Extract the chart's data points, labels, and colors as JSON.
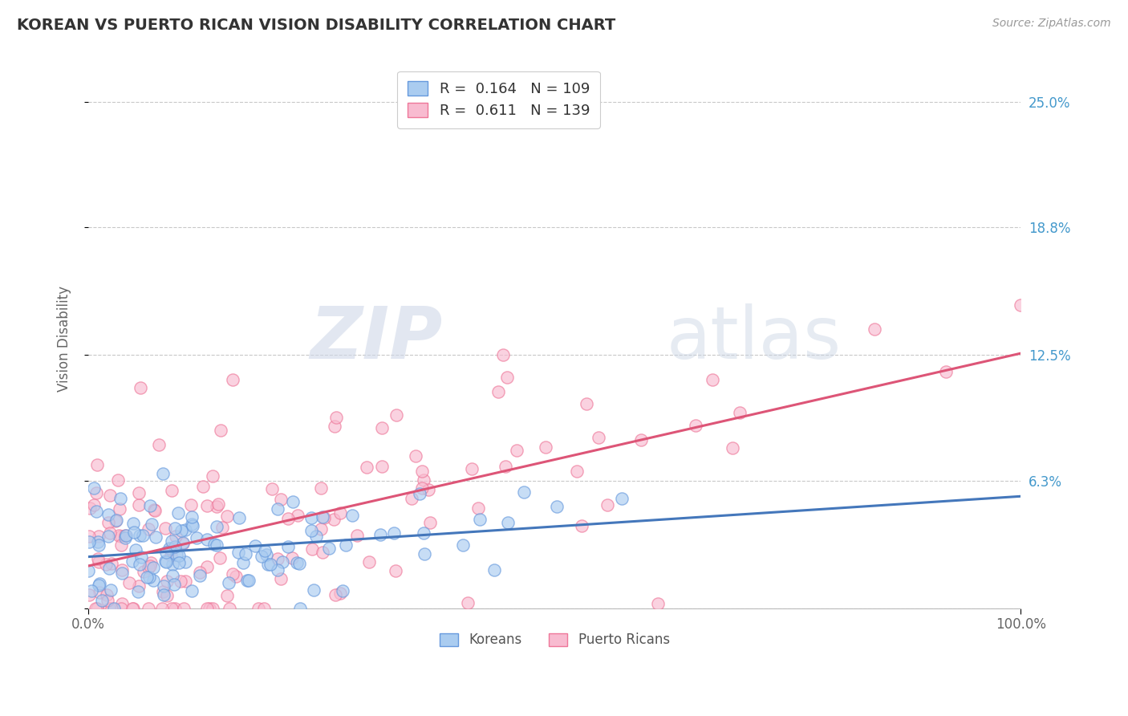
{
  "title": "KOREAN VS PUERTO RICAN VISION DISABILITY CORRELATION CHART",
  "source": "Source: ZipAtlas.com",
  "ylabel": "Vision Disability",
  "xlim": [
    0,
    1
  ],
  "ylim": [
    0,
    0.266
  ],
  "yticks": [
    0.0,
    0.063,
    0.125,
    0.188,
    0.25
  ],
  "ytick_labels": [
    "",
    "6.3%",
    "12.5%",
    "18.8%",
    "25.0%"
  ],
  "watermark_zip": "ZIP",
  "watermark_atlas": "atlas",
  "korean_R": 0.164,
  "korean_N": 109,
  "puerto_rican_R": 0.611,
  "puerto_rican_N": 139,
  "korean_color": "#AACCF0",
  "puerto_rican_color": "#F8BBD0",
  "korean_edge_color": "#6699DD",
  "puerto_rican_edge_color": "#EE7799",
  "korean_line_color": "#4477BB",
  "puerto_rican_line_color": "#DD5577",
  "legend_korean_label": "R =  0.164   N = 109",
  "legend_pr_label": "R =  0.611   N = 139",
  "legend_korean_text": "Koreans",
  "legend_pr_text": "Puerto Ricans",
  "background_color": "#FFFFFF",
  "grid_color": "#BBBBBB",
  "title_color": "#333333",
  "ytick_color": "#4499CC",
  "source_color": "#999999",
  "ylabel_color": "#666666",
  "xtick_color": "#666666",
  "seed": 7
}
